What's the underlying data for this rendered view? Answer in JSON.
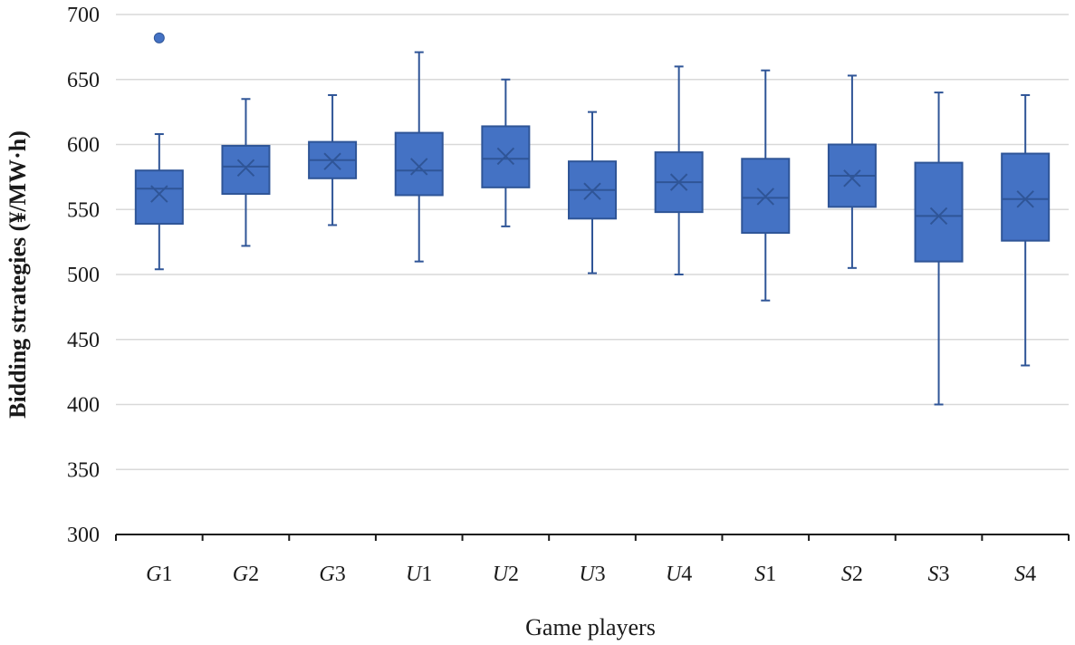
{
  "chart_data": {
    "type": "box",
    "xlabel": "Game players",
    "ylabel": "Bidding strategies (¥/MW·h)",
    "ylim": [
      300,
      700
    ],
    "yticks": [
      300,
      350,
      400,
      450,
      500,
      550,
      600,
      650,
      700
    ],
    "grid": true,
    "color": "#4472C4",
    "edge_color": "#2F5597",
    "categories": [
      {
        "letter": "G",
        "num": "1"
      },
      {
        "letter": "G",
        "num": "2"
      },
      {
        "letter": "G",
        "num": "3"
      },
      {
        "letter": "U",
        "num": "1"
      },
      {
        "letter": "U",
        "num": "2"
      },
      {
        "letter": "U",
        "num": "3"
      },
      {
        "letter": "U",
        "num": "4"
      },
      {
        "letter": "S",
        "num": "1"
      },
      {
        "letter": "S",
        "num": "2"
      },
      {
        "letter": "S",
        "num": "3"
      },
      {
        "letter": "S",
        "num": "4"
      }
    ],
    "boxes": [
      {
        "min": 504,
        "q1": 539,
        "median": 566,
        "q3": 580,
        "max": 608,
        "mean": 562,
        "outliers": [
          682
        ]
      },
      {
        "min": 522,
        "q1": 562,
        "median": 583,
        "q3": 599,
        "max": 635,
        "mean": 582,
        "outliers": []
      },
      {
        "min": 538,
        "q1": 574,
        "median": 588,
        "q3": 602,
        "max": 638,
        "mean": 587,
        "outliers": []
      },
      {
        "min": 510,
        "q1": 561,
        "median": 580,
        "q3": 609,
        "max": 671,
        "mean": 583,
        "outliers": []
      },
      {
        "min": 537,
        "q1": 567,
        "median": 589,
        "q3": 614,
        "max": 650,
        "mean": 591,
        "outliers": []
      },
      {
        "min": 501,
        "q1": 543,
        "median": 565,
        "q3": 587,
        "max": 625,
        "mean": 564,
        "outliers": []
      },
      {
        "min": 500,
        "q1": 548,
        "median": 571,
        "q3": 594,
        "max": 660,
        "mean": 571,
        "outliers": []
      },
      {
        "min": 480,
        "q1": 532,
        "median": 559,
        "q3": 589,
        "max": 657,
        "mean": 560,
        "outliers": []
      },
      {
        "min": 505,
        "q1": 552,
        "median": 576,
        "q3": 600,
        "max": 653,
        "mean": 574,
        "outliers": []
      },
      {
        "min": 400,
        "q1": 510,
        "median": 545,
        "q3": 586,
        "max": 640,
        "mean": 545,
        "outliers": []
      },
      {
        "min": 430,
        "q1": 526,
        "median": 558,
        "q3": 593,
        "max": 638,
        "mean": 558,
        "outliers": []
      }
    ]
  }
}
